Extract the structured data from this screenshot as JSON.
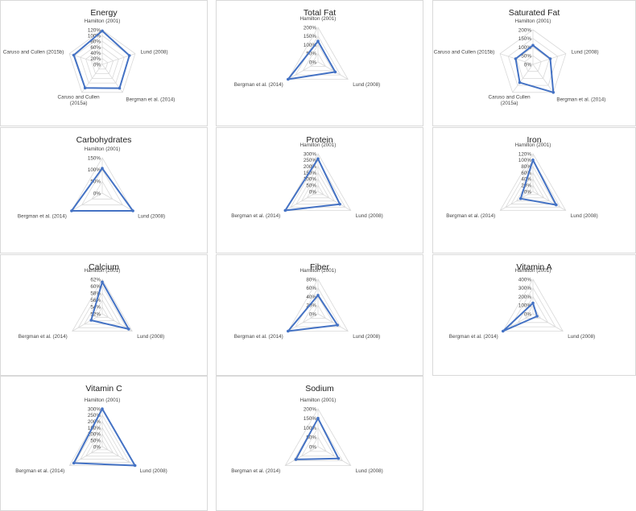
{
  "series_color": "#4472C4",
  "chart_data": [
    {
      "type": "radar",
      "title": "Energy",
      "categories": [
        "Hamilton (2001)",
        "Lund (2008)",
        "Bergman et al. (2014)",
        "Caruso and Cullen (2015a)",
        "Caruso and Cullen (2015b)"
      ],
      "values": [
        1.16,
        0.99,
        1.02,
        1.01,
        1.04
      ],
      "ylim": [
        0,
        1.2
      ],
      "tick_labels": [
        "0%",
        "20%",
        "40%",
        "60%",
        "80%",
        "100%",
        "120%"
      ],
      "tick_values": [
        0,
        0.2,
        0.4,
        0.6,
        0.8,
        1.0,
        1.2
      ]
    },
    {
      "type": "radar",
      "title": "Total Fat",
      "categories": [
        "Hamilton (2001)",
        "Lund (2008)",
        "Bergman et al. (2014)"
      ],
      "values": [
        1.2,
        1.15,
        2.0
      ],
      "ylim": [
        0,
        2.0
      ],
      "tick_labels": [
        "0%",
        "50%",
        "100%",
        "150%",
        "200%"
      ],
      "tick_values": [
        0,
        0.5,
        1.0,
        1.5,
        2.0
      ]
    },
    {
      "type": "radar",
      "title": "Saturated Fat",
      "categories": [
        "Hamilton (2001)",
        "Lund (2008)",
        "Bergman et al. (2014)",
        "Caruso and Cullen (2015a)",
        "Caruso and Cullen (2015b)"
      ],
      "values": [
        1.1,
        1.05,
        2.0,
        1.3,
        1.05
      ],
      "ylim": [
        0,
        2.0
      ],
      "tick_labels": [
        "0%",
        "50%",
        "100%",
        "150%",
        "200%"
      ],
      "tick_values": [
        0,
        0.5,
        1.0,
        1.5,
        2.0
      ]
    },
    {
      "type": "radar",
      "title": "Carbohydrates",
      "categories": [
        "Hamilton (2001)",
        "Lund (2008)",
        "Bergman et al. (2014)"
      ],
      "values": [
        1.05,
        1.5,
        1.5
      ],
      "ylim": [
        0,
        1.5
      ],
      "tick_labels": [
        "0%",
        "50%",
        "100%",
        "150%"
      ],
      "tick_values": [
        0,
        0.5,
        1.0,
        1.5
      ]
    },
    {
      "type": "radar",
      "title": "Protein",
      "categories": [
        "Hamilton (2001)",
        "Lund (2008)",
        "Bergman et al. (2014)"
      ],
      "values": [
        2.6,
        2.0,
        3.0
      ],
      "ylim": [
        0,
        3.0
      ],
      "tick_labels": [
        "0%",
        "50%",
        "100%",
        "150%",
        "200%",
        "250%",
        "300%"
      ],
      "tick_values": [
        0,
        0.5,
        1.0,
        1.5,
        2.0,
        2.5,
        3.0
      ]
    },
    {
      "type": "radar",
      "title": "Iron",
      "categories": [
        "Hamilton (2001)",
        "Lund (2008)",
        "Bergman et al. (2014)"
      ],
      "values": [
        1.0,
        0.85,
        0.45
      ],
      "ylim": [
        0,
        1.2
      ],
      "tick_labels": [
        "0%",
        "20%",
        "40%",
        "60%",
        "80%",
        "100%",
        "120%"
      ],
      "tick_values": [
        0,
        0.2,
        0.4,
        0.6,
        0.8,
        1.0,
        1.2
      ]
    },
    {
      "type": "radar",
      "title": "Calcium",
      "categories": [
        "Hamilton (2001)",
        "Lund (2008)",
        "Bergman et al. (2014)"
      ],
      "values": [
        0.612,
        0.608,
        0.557
      ],
      "ylim": [
        0.52,
        0.62
      ],
      "tick_labels": [
        "52%",
        "54%",
        "56%",
        "58%",
        "60%",
        "62%"
      ],
      "tick_values": [
        0.52,
        0.54,
        0.56,
        0.58,
        0.6,
        0.62
      ]
    },
    {
      "type": "radar",
      "title": "Fiber",
      "categories": [
        "Hamilton (2001)",
        "Lund (2008)",
        "Bergman et al. (2014)"
      ],
      "values": [
        0.43,
        0.52,
        0.8
      ],
      "ylim": [
        0,
        0.8
      ],
      "tick_labels": [
        "0%",
        "20%",
        "40%",
        "60%",
        "80%"
      ],
      "tick_values": [
        0,
        0.2,
        0.4,
        0.6,
        0.8
      ]
    },
    {
      "type": "radar",
      "title": "Vitamin A",
      "categories": [
        "Hamilton (2001)",
        "Lund (2008)",
        "Bergman et al. (2014)"
      ],
      "values": [
        1.25,
        0.55,
        4.0
      ],
      "ylim": [
        0,
        4.0
      ],
      "tick_labels": [
        "0%",
        "100%",
        "200%",
        "300%",
        "400%"
      ],
      "tick_values": [
        0,
        1.0,
        2.0,
        3.0,
        4.0
      ]
    },
    {
      "type": "radar",
      "title": "Vitamin C",
      "categories": [
        "Hamilton (2001)",
        "Lund (2008)",
        "Bergman et al. (2014)"
      ],
      "values": [
        3.0,
        3.0,
        2.6
      ],
      "ylim": [
        0,
        3.0
      ],
      "tick_labels": [
        "0%",
        "50%",
        "100%",
        "150%",
        "200%",
        "250%",
        "300%"
      ],
      "tick_values": [
        0,
        0.5,
        1.0,
        1.5,
        2.0,
        2.5,
        3.0
      ]
    },
    {
      "type": "radar",
      "title": "Sodium",
      "categories": [
        "Hamilton (2001)",
        "Lund (2008)",
        "Bergman et al. (2014)"
      ],
      "values": [
        1.5,
        1.25,
        1.35
      ],
      "ylim": [
        0,
        2.0
      ],
      "tick_labels": [
        "0%",
        "50%",
        "100%",
        "150%",
        "200%"
      ],
      "tick_values": [
        0,
        0.5,
        1.0,
        1.5,
        2.0
      ]
    }
  ]
}
